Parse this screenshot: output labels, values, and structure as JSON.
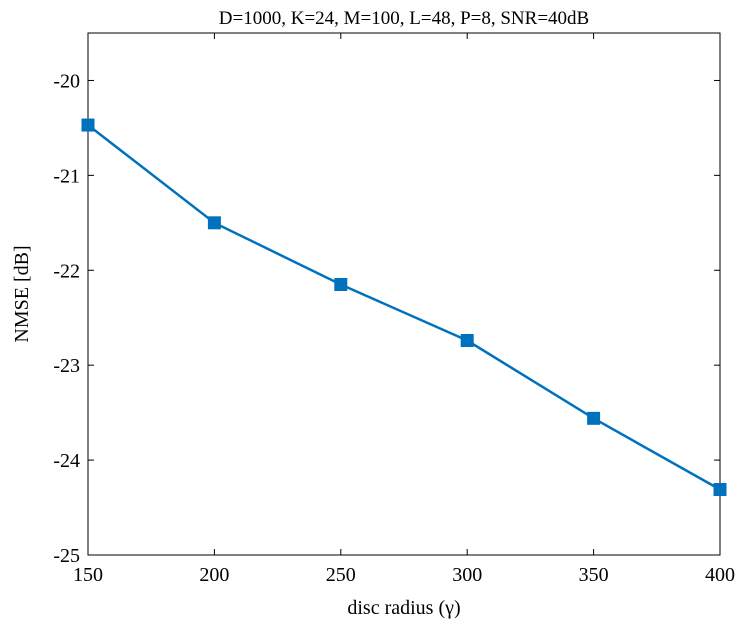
{
  "chart_data": {
    "type": "line",
    "title": "D=1000, K=24, M=100, L=48, P=8, SNR=40dB",
    "xlabel": "disc radius (γ)",
    "ylabel": "NMSE [dB]",
    "xlim": [
      150,
      400
    ],
    "ylim": [
      -25,
      -19.5
    ],
    "xticks": [
      150,
      200,
      250,
      300,
      350,
      400
    ],
    "yticks": [
      -25,
      -24,
      -23,
      -22,
      -21,
      -20
    ],
    "grid": false,
    "line_color": "#0072BD",
    "marker": "square",
    "series": [
      {
        "x": [
          150,
          200,
          250,
          300,
          350,
          400
        ],
        "values": [
          -20.47,
          -21.5,
          -22.15,
          -22.74,
          -23.56,
          -24.31
        ]
      }
    ]
  }
}
